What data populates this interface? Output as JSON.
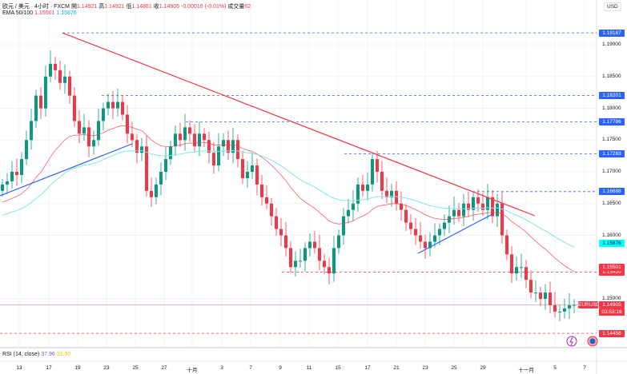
{
  "header": {
    "symbol": "欧元 / 美元 · 4小时 · FXCM",
    "open_label": "開",
    "open": "1.14921",
    "high_label": "高",
    "high": "1.14921",
    "low_label": "低",
    "low": "1.14861",
    "close_label": "收",
    "close": "1.14905",
    "change": "-0.00016 (-0.01%)",
    "volume_label": "成交量",
    "volume": "62"
  },
  "ema": {
    "label": "EMA 50/100",
    "ema50": "1.15501",
    "ema100": "1.15876"
  },
  "rsi": {
    "label": "RSI (14, close)",
    "value1": "37.96",
    "value2": "32.90"
  },
  "price_scale": {
    "currency": "USD",
    "ticks": [
      "1.19000",
      "1.18500",
      "1.18000",
      "1.17500",
      "1.17000",
      "1.16500",
      "1.16000",
      "1.15000"
    ]
  },
  "levels": [
    {
      "price": "1.19187",
      "color": "#2962ff"
    },
    {
      "price": "1.18201",
      "color": "#2962ff"
    },
    {
      "price": "1.17786",
      "color": "#2962ff"
    },
    {
      "price": "1.17283",
      "color": "#2962ff"
    },
    {
      "price": "1.16688",
      "color": "#2962ff"
    },
    {
      "price": "1.15420",
      "color": "#f23645"
    },
    {
      "price": "1.14458",
      "color": "#f23645"
    }
  ],
  "ema_tags": {
    "ema100": "1.15876",
    "ema50": "1.15501"
  },
  "current": {
    "symbol": "EURUSD",
    "price": "1.14905",
    "countdown": "03:53:16"
  },
  "time_axis": [
    "13",
    "17",
    "19",
    "23",
    "25",
    "27",
    "十月",
    "3",
    "7",
    "9",
    "11",
    "15",
    "17",
    "21",
    "23",
    "25",
    "29",
    "十一月",
    "5",
    "7"
  ],
  "colors": {
    "up": "#089981",
    "down": "#f23645",
    "ema50": "#f23645",
    "ema100": "#7fe7e7",
    "trend": "#f23645",
    "support": "#2962ff"
  },
  "chart_data": {
    "type": "candlestick",
    "ylim": [
      1.1425,
      1.1955
    ],
    "closes": [
      1.168,
      1.1685,
      1.17,
      1.1695,
      1.172,
      1.175,
      1.178,
      1.182,
      1.18,
      1.185,
      1.187,
      1.186,
      1.184,
      1.185,
      1.182,
      1.178,
      1.176,
      1.177,
      1.174,
      1.175,
      1.178,
      1.18,
      1.181,
      1.18,
      1.181,
      1.179,
      1.176,
      1.175,
      1.173,
      1.174,
      1.167,
      1.166,
      1.168,
      1.17,
      1.172,
      1.174,
      1.176,
      1.175,
      1.177,
      1.176,
      1.174,
      1.176,
      1.175,
      1.173,
      1.171,
      1.174,
      1.175,
      1.173,
      1.175,
      1.172,
      1.169,
      1.17,
      1.171,
      1.168,
      1.166,
      1.165,
      1.163,
      1.161,
      1.16,
      1.158,
      1.155,
      1.156,
      1.156,
      1.158,
      1.159,
      1.158,
      1.156,
      1.155,
      1.154,
      1.158,
      1.16,
      1.163,
      1.164,
      1.165,
      1.168,
      1.167,
      1.168,
      1.172,
      1.17,
      1.167,
      1.166,
      1.167,
      1.165,
      1.164,
      1.162,
      1.161,
      1.16,
      1.159,
      1.158,
      1.159,
      1.16,
      1.161,
      1.162,
      1.163,
      1.164,
      1.163,
      1.165,
      1.164,
      1.166,
      1.165,
      1.164,
      1.166,
      1.163,
      1.165,
      1.16,
      1.157,
      1.154,
      1.155,
      1.155,
      1.153,
      1.151,
      1.151,
      1.15,
      1.151,
      1.149,
      1.148,
      1.148,
      1.1485,
      1.149,
      1.14905
    ]
  }
}
